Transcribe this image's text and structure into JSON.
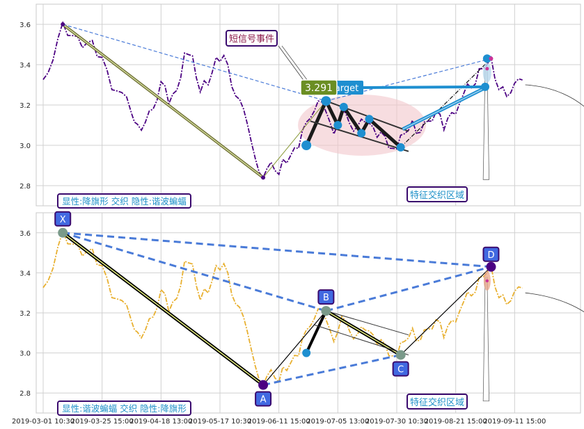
{
  "chart_data": [
    {
      "type": "line",
      "panel": "top",
      "ylim": [
        2.7,
        3.7
      ],
      "yticks": [
        2.8,
        3.0,
        3.2,
        3.4,
        3.6
      ],
      "grid": true,
      "series": [
        {
          "values": [
            [
              0,
              3.35
            ],
            [
              5,
              3.43
            ],
            [
              10,
              3.6
            ],
            [
              15,
              3.52
            ],
            [
              20,
              3.5
            ],
            [
              25,
              3.52
            ],
            [
              30,
              3.42
            ],
            [
              35,
              3.3
            ],
            [
              40,
              3.27
            ],
            [
              45,
              3.15
            ],
            [
              48,
              3.08
            ],
            [
              52,
              3.13
            ],
            [
              56,
              3.18
            ],
            [
              60,
              3.3
            ],
            [
              64,
              3.23
            ],
            [
              68,
              3.28
            ],
            [
              72,
              3.45
            ],
            [
              76,
              3.42
            ],
            [
              80,
              3.28
            ],
            [
              84,
              3.3
            ],
            [
              88,
              3.42
            ],
            [
              92,
              3.47
            ],
            [
              96,
              3.3
            ],
            [
              100,
              3.22
            ],
            [
              104,
              3.08
            ],
            [
              108,
              2.95
            ],
            [
              112,
              2.84
            ],
            [
              116,
              2.9
            ],
            [
              120,
              2.88
            ],
            [
              124,
              2.92
            ],
            [
              128,
              2.98
            ],
            [
              132,
              3.05
            ],
            [
              136,
              3.15
            ],
            [
              140,
              3.22
            ],
            [
              144,
              3.15
            ],
            [
              148,
              3.08
            ],
            [
              152,
              3.19
            ],
            [
              156,
              3.1
            ],
            [
              160,
              3.07
            ],
            [
              164,
              3.13
            ],
            [
              168,
              3.09
            ],
            [
              172,
              3.05
            ],
            [
              176,
              3.01
            ],
            [
              180,
              2.99
            ],
            [
              184,
              3.05
            ],
            [
              188,
              3.1
            ],
            [
              192,
              3.08
            ],
            [
              196,
              3.12
            ],
            [
              200,
              3.15
            ],
            [
              204,
              3.1
            ],
            [
              208,
              3.17
            ],
            [
              212,
              3.2
            ],
            [
              216,
              3.28
            ],
            [
              220,
              3.32
            ],
            [
              224,
              3.38
            ],
            [
              228,
              3.42
            ],
            [
              232,
              3.3
            ],
            [
              236,
              3.25
            ],
            [
              240,
              3.3
            ],
            [
              244,
              3.3
            ]
          ]
        }
      ],
      "pattern_points": [
        {
          "x": 10,
          "y": 3.6
        },
        {
          "x": 112,
          "y": 2.84
        },
        {
          "x": 144,
          "y": 3.22
        },
        {
          "x": 182,
          "y": 2.99
        },
        {
          "x": 228,
          "y": 3.43
        }
      ],
      "annotations": {
        "event_label": "短信号事件",
        "price_label": "3.291",
        "target_label": "arget",
        "zone_label": "特征交织区域",
        "legend_text": "显性:降旗形 交织 隐性:谐波蝙蝠"
      }
    },
    {
      "type": "line",
      "panel": "bottom",
      "ylim": [
        2.7,
        3.7
      ],
      "yticks": [
        2.8,
        3.0,
        3.2,
        3.4,
        3.6
      ],
      "grid": true,
      "xticks": [
        "2019-03-01 10:30",
        "2019-03-25 15:00",
        "2019-04-18 13:00",
        "2019-05-17 10:30",
        "2019-06-11 15:00",
        "2019-07-05 13:00",
        "2019-07-30 10:30",
        "2019-08-21 15:00",
        "2019-09-11 15:00"
      ],
      "series": [
        {
          "values": [
            [
              0,
              3.35
            ],
            [
              5,
              3.43
            ],
            [
              10,
              3.6
            ],
            [
              15,
              3.52
            ],
            [
              20,
              3.5
            ],
            [
              25,
              3.52
            ],
            [
              30,
              3.42
            ],
            [
              35,
              3.3
            ],
            [
              40,
              3.27
            ],
            [
              45,
              3.15
            ],
            [
              48,
              3.08
            ],
            [
              52,
              3.13
            ],
            [
              56,
              3.18
            ],
            [
              60,
              3.3
            ],
            [
              64,
              3.23
            ],
            [
              68,
              3.28
            ],
            [
              72,
              3.45
            ],
            [
              76,
              3.42
            ],
            [
              80,
              3.28
            ],
            [
              84,
              3.3
            ],
            [
              88,
              3.42
            ],
            [
              92,
              3.47
            ],
            [
              96,
              3.3
            ],
            [
              100,
              3.22
            ],
            [
              104,
              3.08
            ],
            [
              108,
              2.95
            ],
            [
              112,
              2.84
            ],
            [
              116,
              2.9
            ],
            [
              120,
              2.88
            ],
            [
              124,
              2.92
            ],
            [
              128,
              2.98
            ],
            [
              132,
              3.05
            ],
            [
              136,
              3.15
            ],
            [
              140,
              3.22
            ],
            [
              144,
              3.15
            ],
            [
              148,
              3.08
            ],
            [
              152,
              3.19
            ],
            [
              156,
              3.1
            ],
            [
              160,
              3.07
            ],
            [
              164,
              3.13
            ],
            [
              168,
              3.09
            ],
            [
              172,
              3.05
            ],
            [
              176,
              3.01
            ],
            [
              180,
              2.99
            ],
            [
              184,
              3.05
            ],
            [
              188,
              3.1
            ],
            [
              192,
              3.08
            ],
            [
              196,
              3.12
            ],
            [
              200,
              3.15
            ],
            [
              204,
              3.1
            ],
            [
              208,
              3.17
            ],
            [
              212,
              3.2
            ],
            [
              216,
              3.28
            ],
            [
              220,
              3.32
            ],
            [
              224,
              3.38
            ],
            [
              228,
              3.42
            ],
            [
              232,
              3.3
            ],
            [
              236,
              3.25
            ],
            [
              240,
              3.3
            ],
            [
              244,
              3.3
            ]
          ]
        }
      ],
      "pattern_points": [
        {
          "label": "X",
          "x": 10,
          "y": 3.6
        },
        {
          "label": "A",
          "x": 112,
          "y": 2.84
        },
        {
          "label": "B",
          "x": 144,
          "y": 3.21
        },
        {
          "label": "C",
          "x": 182,
          "y": 2.99
        },
        {
          "label": "D",
          "x": 228,
          "y": 3.43
        }
      ],
      "annotations": {
        "zone_label": "特征交织区域",
        "legend_text": "显性:谐波蝙蝠 交织 隐性:降旗形"
      }
    }
  ],
  "colors": {
    "top_line": "#4b0082",
    "bottom_line": "#e8b030",
    "harmonic_dashed": "#4a7bd8",
    "pattern_leg": "#000000",
    "label_box_fill": "#4169e1",
    "label_box_border": "#3a0a6e",
    "legend_text": "#1e90c8",
    "event_text": "#8b1a4a",
    "price_box": "#6b8e23",
    "target_box": "#1e8fd0",
    "ellipse": "#f2c6cc",
    "grid": "#d0d0d0"
  }
}
